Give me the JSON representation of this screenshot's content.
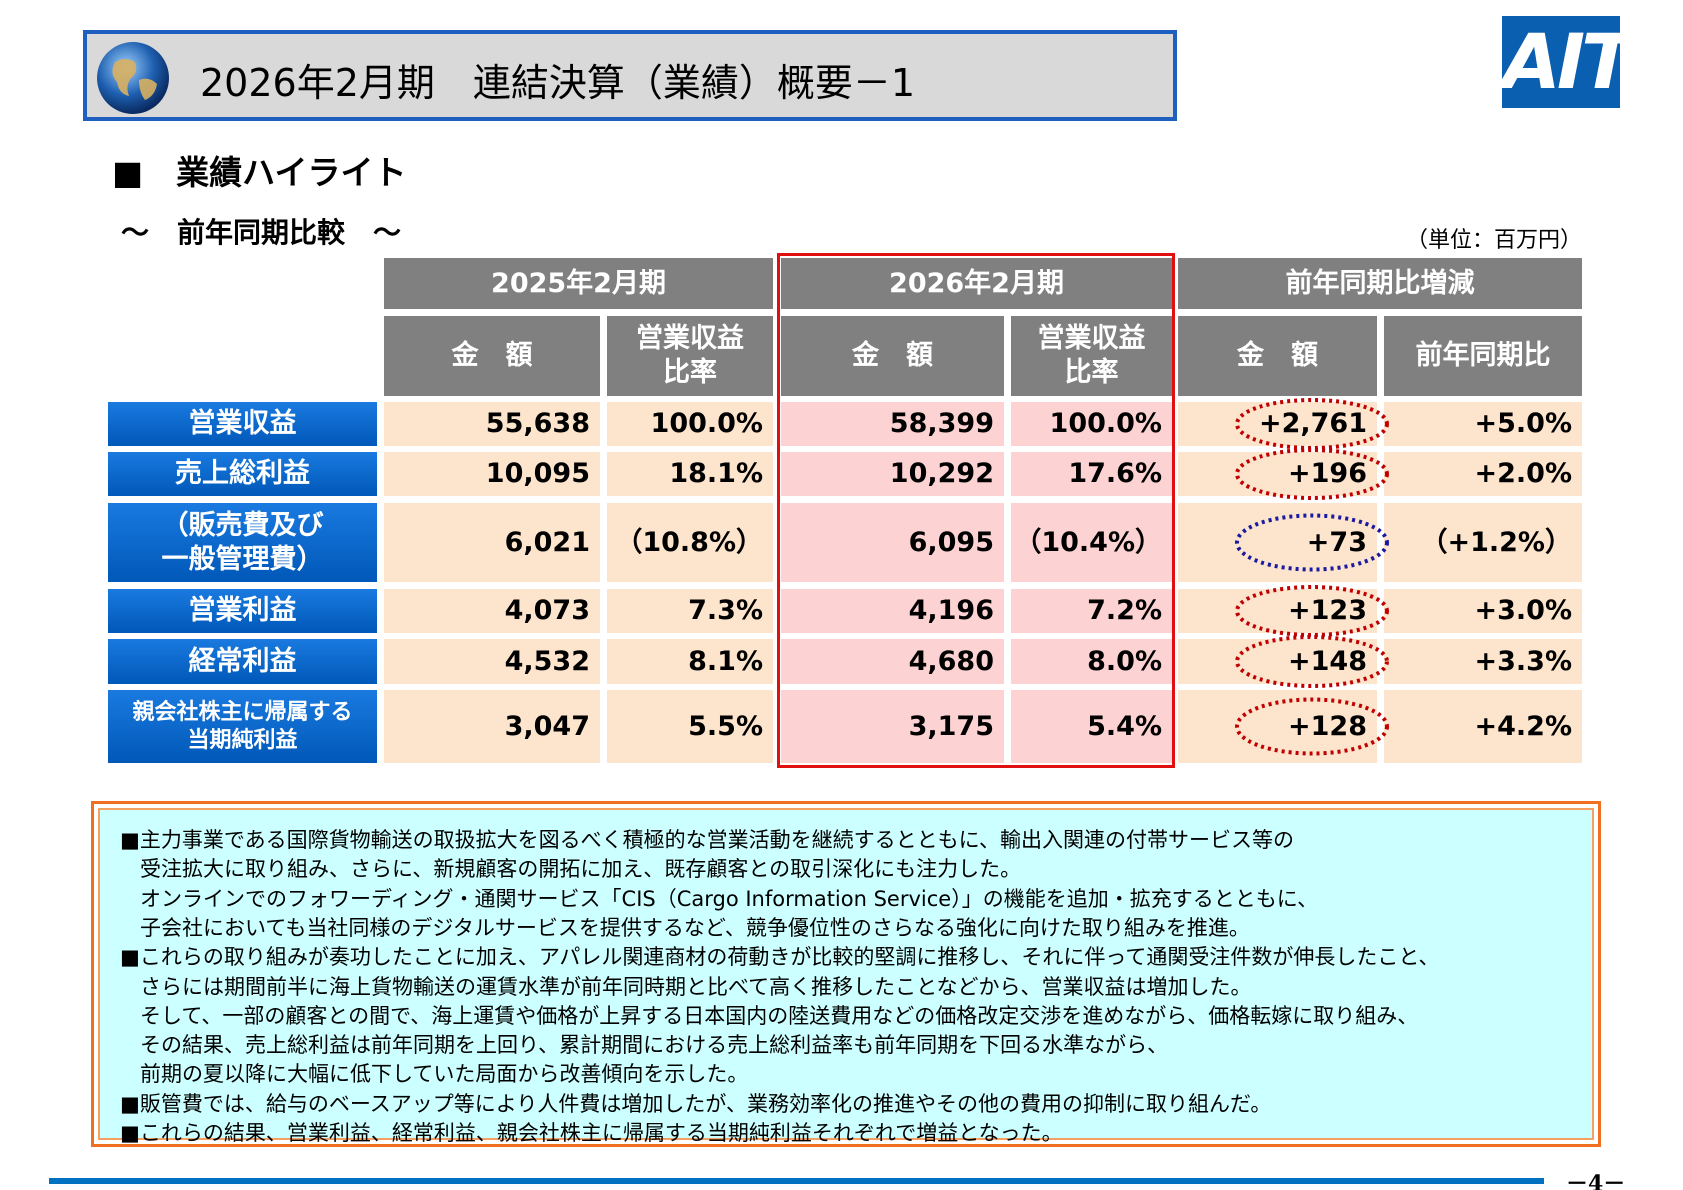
{
  "header": {
    "title": "2026年2月期　連結決算（業績）概要－1",
    "logo": "AIT"
  },
  "section": {
    "title": "■　業績ハイライト",
    "subtitle": "～　前年同期比較　～",
    "unit": "（単位：百万円）"
  },
  "table": {
    "group_headers": [
      "2025年2月期",
      "2026年2月期",
      "前年同期比増減"
    ],
    "sub_headers": [
      [
        "金　額"
      ],
      [
        "営業収益",
        "比率"
      ],
      [
        "金　額"
      ],
      [
        "営業収益",
        "比率"
      ],
      [
        "金　額"
      ],
      [
        "前年同期比"
      ]
    ],
    "rows": [
      {
        "label": [
          "営業収益"
        ],
        "cells": [
          "55,638",
          "100.0%",
          "58,399",
          "100.0%",
          "+2,761",
          "+5.0%"
        ],
        "circle_color": "#c00000"
      },
      {
        "label": [
          "売上総利益"
        ],
        "cells": [
          "10,095",
          "18.1%",
          "10,292",
          "17.6%",
          "+196",
          "+2.0%"
        ],
        "circle_color": "#c00000"
      },
      {
        "label": [
          "（販売費及び",
          "一般管理費）"
        ],
        "cells": [
          "6,021",
          "（10.8%）",
          "6,095",
          "（10.4%）",
          "+73",
          "（+1.2%）"
        ],
        "circle_color": "#1a1aa0"
      },
      {
        "label": [
          "営業利益"
        ],
        "cells": [
          "4,073",
          "7.3%",
          "4,196",
          "7.2%",
          "+123",
          "+3.0%"
        ],
        "circle_color": "#c00000"
      },
      {
        "label": [
          "経常利益"
        ],
        "cells": [
          "4,532",
          "8.1%",
          "4,680",
          "8.0%",
          "+148",
          "+3.3%"
        ],
        "circle_color": "#c00000"
      },
      {
        "label": [
          "親会社株主に帰属する",
          "当期純利益"
        ],
        "cells": [
          "3,047",
          "5.5%",
          "3,175",
          "5.4%",
          "+128",
          "+4.2%"
        ],
        "circle_color": "#c00000"
      }
    ]
  },
  "notes": [
    [
      "■主力事業である国際貨物輸送の取扱拡大を図るべく積極的な営業活動を継続するとともに、輸出入関連の付帯サービス等の",
      "受注拡大に取り組み、さらに、新規顧客の開拓に加え、既存顧客との取引深化にも注力した。",
      "オンラインでのフォワーディング・通関サービス「CIS（Cargo Information Service）」の機能を追加・拡充するとともに、",
      "子会社においても当社同様のデジタルサービスを提供するなど、競争優位性のさらなる強化に向けた取り組みを推進。"
    ],
    [
      "■これらの取り組みが奏功したことに加え、アパレル関連商材の荷動きが比較的堅調に推移し、それに伴って通関受注件数が伸長したこと、",
      "さらには期間前半に海上貨物輸送の運賃水準が前年同時期と比べて高く推移したことなどから、営業収益は増加した。",
      "そして、一部の顧客との間で、海上運賃や価格が上昇する日本国内の陸送費用などの価格改定交渉を進めながら、価格転嫁に取り組み、",
      "その結果、売上総利益は前年同期を上回り、累計期間における売上総利益率も前年同期を下回る水準ながら、",
      "前期の夏以降に大幅に低下していた局面から改善傾向を示した。"
    ],
    [
      "■販管費では、給与のベースアップ等により人件費は増加したが、業務効率化の推進やその他の費用の抑制に取り組んだ。"
    ],
    [
      "■これらの結果、営業利益、経常利益、親会社株主に帰属する当期純利益それぞれで増益となった。"
    ]
  ],
  "page_number": "－4－"
}
